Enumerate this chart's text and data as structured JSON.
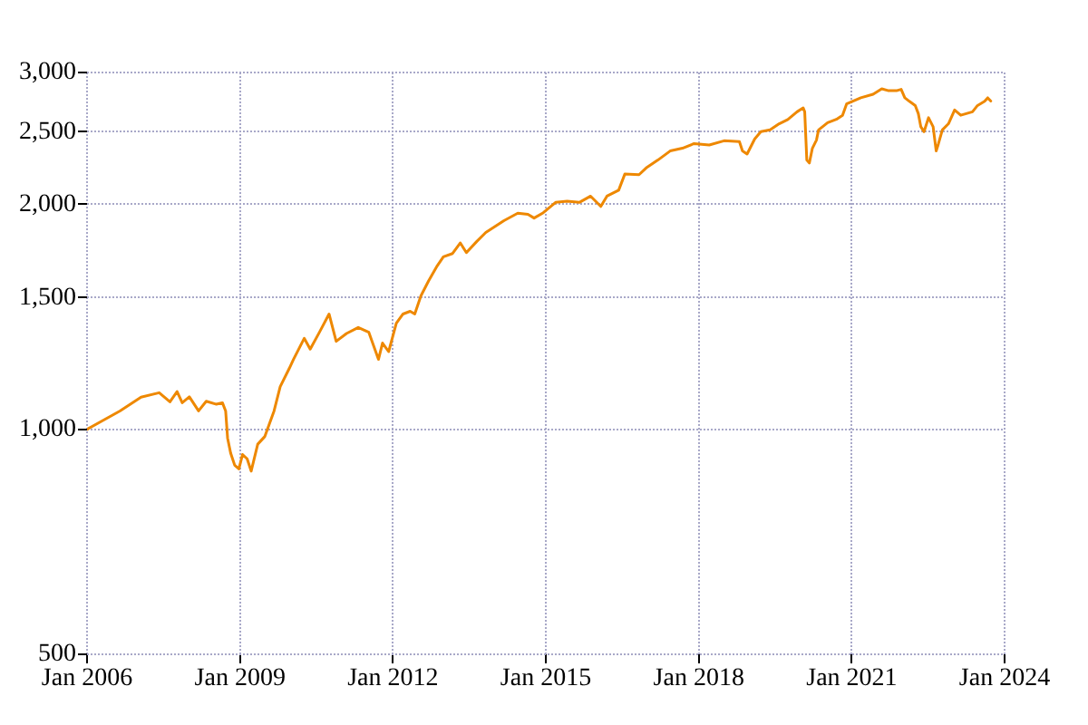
{
  "chart_data": {
    "type": "line",
    "x": [
      "2006-01-01",
      "2006-08-25",
      "2007-01-23",
      "2007-06-02",
      "2007-08-18",
      "2007-10-08",
      "2007-11-14",
      "2008-01-04",
      "2008-03-10",
      "2008-05-04",
      "2008-07-16",
      "2008-08-28",
      "2008-09-20",
      "2008-10-04",
      "2008-10-26",
      "2008-11-24",
      "2008-12-24",
      "2009-01-19",
      "2009-02-21",
      "2009-03-22",
      "2009-05-08",
      "2009-06-28",
      "2009-09-02",
      "2009-10-16",
      "2009-12-20",
      "2010-01-19",
      "2010-04-06",
      "2010-05-19",
      "2010-07-24",
      "2010-10-01",
      "2010-11-21",
      "2011-02-03",
      "2011-04-28",
      "2011-07-13",
      "2011-09-20",
      "2011-10-19",
      "2011-12-02",
      "2012-01-26",
      "2012-03-14",
      "2012-05-04",
      "2012-06-06",
      "2012-07-20",
      "2012-09-13",
      "2012-11-14",
      "2012-12-28",
      "2013-03-04",
      "2013-04-28",
      "2013-06-11",
      "2013-08-23",
      "2013-10-28",
      "2014-03-07",
      "2014-06-14",
      "2014-08-26",
      "2014-10-09",
      "2014-12-14",
      "2015-03-12",
      "2015-06-03",
      "2015-08-29",
      "2015-11-18",
      "2016-01-30",
      "2016-03-14",
      "2016-06-06",
      "2016-07-20",
      "2016-10-30",
      "2016-12-20",
      "2017-03-14",
      "2017-06-10",
      "2017-09-06",
      "2017-11-28",
      "2018-03-17",
      "2018-07-01",
      "2018-10-19",
      "2018-11-10",
      "2018-12-13",
      "2019-02-06",
      "2019-03-22",
      "2019-05-27",
      "2019-07-31",
      "2019-10-01",
      "2019-12-06",
      "2020-01-19",
      "2020-01-30",
      "2020-02-14",
      "2020-03-03",
      "2020-03-25",
      "2020-04-23",
      "2020-05-08",
      "2020-07-12",
      "2020-09-13",
      "2020-10-27",
      "2020-11-25",
      "2021-03-07",
      "2021-06-03",
      "2021-08-04",
      "2021-09-17",
      "2021-11-22",
      "2021-12-21",
      "2022-01-16",
      "2022-02-18",
      "2022-04-01",
      "2022-04-23",
      "2022-05-11",
      "2022-06-03",
      "2022-07-05",
      "2022-08-07",
      "2022-08-29",
      "2022-09-13",
      "2022-10-12",
      "2022-11-25",
      "2023-01-08",
      "2023-02-21",
      "2023-05-16",
      "2023-06-21",
      "2023-08-11",
      "2023-09-02",
      "2023-09-24"
    ],
    "series": [
      {
        "color": "#ee8800",
        "values": [
          1000,
          1058,
          1104,
          1119,
          1088,
          1123,
          1085,
          1105,
          1058,
          1090,
          1080,
          1085,
          1058,
          973,
          929,
          895,
          885,
          925,
          913,
          879,
          955,
          978,
          1058,
          1140,
          1206,
          1240,
          1323,
          1280,
          1348,
          1426,
          1311,
          1343,
          1368,
          1348,
          1240,
          1304,
          1270,
          1386,
          1426,
          1438,
          1426,
          1508,
          1579,
          1654,
          1701,
          1718,
          1775,
          1723,
          1782,
          1833,
          1901,
          1945,
          1938,
          1916,
          1948,
          2011,
          2018,
          2011,
          2050,
          1986,
          2050,
          2088,
          2194,
          2190,
          2236,
          2291,
          2356,
          2376,
          2410,
          2400,
          2431,
          2425,
          2356,
          2334,
          2445,
          2500,
          2514,
          2562,
          2595,
          2658,
          2690,
          2658,
          2291,
          2270,
          2376,
          2436,
          2514,
          2570,
          2597,
          2630,
          2723,
          2775,
          2806,
          2853,
          2838,
          2838,
          2848,
          2775,
          2745,
          2710,
          2643,
          2538,
          2500,
          2610,
          2538,
          2356,
          2405,
          2514,
          2562,
          2673,
          2630,
          2658,
          2710,
          2745,
          2775,
          2748
        ]
      }
    ],
    "xlim": [
      "2006-01",
      "2024-01"
    ],
    "xticks": [
      {
        "value": "2006-01",
        "label": "Jan 2006"
      },
      {
        "value": "2009-01",
        "label": "Jan 2009"
      },
      {
        "value": "2012-01",
        "label": "Jan 2012"
      },
      {
        "value": "2015-01",
        "label": "Jan 2015"
      },
      {
        "value": "2018-01",
        "label": "Jan 2018"
      },
      {
        "value": "2021-01",
        "label": "Jan 2021"
      },
      {
        "value": "2024-01",
        "label": "Jan 2024"
      }
    ],
    "ylim": [
      500,
      3000
    ],
    "yticks": [
      500,
      {
        "value": 1000,
        "label": "1,000"
      },
      {
        "value": 1500,
        "label": "1,500"
      },
      {
        "value": 2000,
        "label": "2,000"
      },
      {
        "value": 2500,
        "label": "2,500"
      },
      {
        "value": 3000,
        "label": "3,000"
      }
    ],
    "log": "y",
    "grid": true,
    "marker": "none",
    "line_style": "solid"
  }
}
